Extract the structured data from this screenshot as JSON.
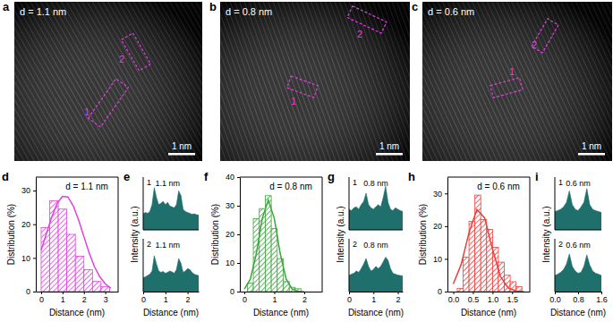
{
  "images": [
    {
      "panel_label": "a",
      "label": "d = 1.1 nm",
      "scale_bar": "1 nm",
      "regions": [
        "1",
        "2"
      ]
    },
    {
      "panel_label": "b",
      "label": "d = 0.8 nm",
      "scale_bar": "1 nm",
      "regions": [
        "1",
        "2"
      ]
    },
    {
      "panel_label": "c",
      "label": "d = 0.6 nm",
      "scale_bar": "1 nm",
      "regions": [
        "1",
        "2"
      ]
    }
  ],
  "chart_data": [
    {
      "type": "histogram",
      "panel_label": "d",
      "annotation": "d = 1.1 nm",
      "xlabel": "Distance (nm)",
      "ylabel": "Distribution (%)",
      "bins": [
        0,
        0.4,
        0.8,
        1.2,
        1.6,
        2.0,
        2.4,
        2.8,
        3.2
      ],
      "values": [
        19,
        27,
        24.5,
        17,
        10.5,
        6.5,
        3,
        1.5
      ],
      "fit_x": [
        0,
        0.25,
        0.5,
        0.75,
        1,
        1.25,
        1.5,
        1.75,
        2,
        2.25,
        2.5,
        2.75,
        3,
        3.25
      ],
      "fit_values": [
        12.3,
        17.3,
        22.2,
        26.2,
        28.3,
        28.1,
        25.5,
        21.3,
        16.3,
        11.4,
        7.3,
        4.3,
        2.3,
        1.0
      ],
      "color": "#e040e0",
      "xlim": [
        -0.25,
        3.6
      ],
      "xticks": [
        0,
        1,
        2,
        3
      ],
      "ylim": [
        0,
        34
      ],
      "yticks": [
        0,
        10,
        20,
        30
      ]
    },
    {
      "type": "area",
      "panel_label": "e",
      "xlabel": "Distance (nm)",
      "ylabel": "Intensity (a.u.)",
      "xlim": [
        0,
        2.5
      ],
      "xticks": [
        0,
        1,
        2
      ],
      "ylim": [
        0,
        1.15
      ],
      "tick_labels": "x",
      "color": "#1f6f6c",
      "subplots": [
        {
          "label": "1",
          "annotation": {
            "text": "1.1 nm",
            "x": 1.1,
            "y": 0.95
          },
          "x": [
            0,
            0.1,
            0.2,
            0.3,
            0.4,
            0.5,
            0.6,
            0.7,
            0.8,
            0.9,
            1,
            1.1,
            1.2,
            1.3,
            1.4,
            1.5,
            1.6,
            1.7,
            1.8,
            1.9,
            2,
            2.1,
            2.2,
            2.3,
            2.4,
            2.5
          ],
          "values": [
            0.35,
            0.38,
            0.36,
            0.4,
            0.55,
            0.92,
            0.7,
            0.55,
            0.58,
            0.62,
            0.55,
            0.6,
            0.52,
            0.5,
            0.48,
            0.55,
            0.85,
            0.75,
            0.45,
            0.4,
            0.38,
            0.36,
            0.34,
            0.35,
            0.33,
            0.32
          ]
        },
        {
          "label": "2",
          "annotation": {
            "text": "1.1 nm",
            "x": 1.1,
            "y": 0.95
          },
          "x": [
            0,
            0.1,
            0.2,
            0.3,
            0.4,
            0.5,
            0.6,
            0.7,
            0.8,
            0.9,
            1,
            1.1,
            1.2,
            1.3,
            1.4,
            1.5,
            1.6,
            1.7,
            1.8,
            1.9,
            2,
            2.1,
            2.2,
            2.3,
            2.4,
            2.5
          ],
          "values": [
            0.3,
            0.32,
            0.35,
            0.38,
            0.45,
            0.78,
            0.6,
            0.45,
            0.42,
            0.44,
            0.4,
            0.42,
            0.45,
            0.43,
            0.4,
            0.48,
            0.72,
            0.62,
            0.42,
            0.45,
            0.5,
            0.48,
            0.42,
            0.38,
            0.36,
            0.35
          ]
        }
      ]
    },
    {
      "type": "histogram",
      "panel_label": "f",
      "annotation": "d = 0.8 nm",
      "xlabel": "Distance (nm)",
      "ylabel": "Distribution (%)",
      "bins": [
        0.1,
        0.3,
        0.5,
        0.7,
        0.9,
        1.1,
        1.3,
        1.5,
        1.7,
        1.9
      ],
      "values": [
        3,
        25.5,
        29,
        33.5,
        22,
        11.5,
        3.5,
        1.5,
        1
      ],
      "fit_x": [
        0,
        0.2,
        0.4,
        0.6,
        0.8,
        1,
        1.2,
        1.4,
        1.6,
        1.8,
        2
      ],
      "fit_values": [
        0.9,
        4.3,
        13.2,
        25.6,
        32,
        25.6,
        13.2,
        4.3,
        0.9,
        0.1,
        0
      ],
      "color": "#3aa83a",
      "xlim": [
        -0.15,
        2.6
      ],
      "xticks": [
        0,
        1,
        2
      ],
      "ylim": [
        0,
        40
      ],
      "yticks": [
        0,
        10,
        20,
        30,
        40
      ]
    },
    {
      "type": "area",
      "panel_label": "g",
      "xlabel": "Distance (nm)",
      "ylabel": "Intensity (a.u.)",
      "xlim": [
        0,
        2.2
      ],
      "xticks": [
        0,
        1,
        2
      ],
      "ylim": [
        0,
        1.15
      ],
      "tick_labels": "x",
      "color": "#1f6f6c",
      "subplots": [
        {
          "label": "1",
          "annotation": {
            "text": "0.8 nm",
            "x": 1.1,
            "y": 0.95
          },
          "x": [
            0,
            0.1,
            0.2,
            0.3,
            0.4,
            0.5,
            0.6,
            0.7,
            0.8,
            0.9,
            1,
            1.1,
            1.2,
            1.3,
            1.4,
            1.5,
            1.6,
            1.7,
            1.8,
            1.9,
            2,
            2.1,
            2.2
          ],
          "values": [
            0.45,
            0.42,
            0.48,
            0.5,
            0.45,
            0.55,
            0.62,
            0.8,
            0.55,
            0.48,
            0.45,
            0.5,
            0.55,
            0.5,
            0.7,
            0.95,
            0.6,
            0.45,
            0.42,
            0.48,
            0.45,
            0.42,
            0.4
          ]
        },
        {
          "label": "2",
          "annotation": {
            "text": "0.8 nm",
            "x": 1.1,
            "y": 0.95
          },
          "x": [
            0,
            0.1,
            0.2,
            0.3,
            0.4,
            0.5,
            0.6,
            0.7,
            0.8,
            0.9,
            1,
            1.1,
            1.2,
            1.3,
            1.4,
            1.5,
            1.6,
            1.7,
            1.8,
            1.9,
            2,
            2.1,
            2.2
          ],
          "values": [
            0.35,
            0.38,
            0.4,
            0.45,
            0.42,
            0.5,
            0.6,
            0.72,
            0.55,
            0.45,
            0.48,
            0.55,
            0.5,
            0.55,
            0.65,
            0.75,
            0.68,
            0.5,
            0.4,
            0.38,
            0.36,
            0.35,
            0.34
          ]
        }
      ]
    },
    {
      "type": "histogram",
      "panel_label": "h",
      "annotation": "d = 0.6 nm",
      "xlabel": "Distance (nm)",
      "ylabel": "Distribution (%)",
      "bins": [
        0.1,
        0.25,
        0.4,
        0.55,
        0.7,
        0.85,
        1.0,
        1.15,
        1.3,
        1.45,
        1.6,
        1.75
      ],
      "values": [
        1,
        10.5,
        21.5,
        29.5,
        22,
        19,
        13.5,
        9,
        5,
        3,
        1.5
      ],
      "fit_x": [
        0,
        0.2,
        0.4,
        0.6,
        0.8,
        1,
        1.2,
        1.4,
        1.6,
        1.8
      ],
      "fit_values": [
        2.4,
        8.3,
        18,
        25.1,
        22.5,
        12.9,
        4.7,
        1.1,
        0.2,
        0
      ],
      "color": "#e8403e",
      "xlim": [
        -0.15,
        1.95
      ],
      "xticks": [
        {
          "value": 0,
          "label": "0.0"
        },
        {
          "value": 0.5,
          "label": "0.5"
        },
        {
          "value": 1,
          "label": "1.0"
        },
        {
          "value": 1.5,
          "label": "1.5"
        }
      ],
      "ylim": [
        0,
        35
      ],
      "yticks": [
        0,
        10,
        20,
        30
      ]
    },
    {
      "type": "area",
      "panel_label": "i",
      "xlabel": "Distance (nm)",
      "ylabel": "Intensity (a.u.)",
      "xlim": [
        0,
        1.6
      ],
      "xticks": [
        {
          "value": 0,
          "label": "0.0"
        },
        {
          "value": 0.8,
          "label": "0.8"
        },
        {
          "value": 1.6,
          "label": "1.6"
        }
      ],
      "ylim": [
        0,
        1.15
      ],
      "tick_labels": "x",
      "color": "#1f6f6c",
      "subplots": [
        {
          "label": "1",
          "annotation": {
            "text": "0.6 nm",
            "x": 0.8,
            "y": 0.95
          },
          "x": [
            0,
            0.1,
            0.2,
            0.3,
            0.4,
            0.5,
            0.6,
            0.7,
            0.8,
            0.9,
            1,
            1.1,
            1.2,
            1.3,
            1.4,
            1.5,
            1.6
          ],
          "values": [
            0.4,
            0.42,
            0.45,
            0.5,
            0.6,
            0.85,
            0.55,
            0.45,
            0.42,
            0.5,
            0.6,
            0.9,
            0.55,
            0.45,
            0.42,
            0.4,
            0.38
          ]
        },
        {
          "label": "2",
          "annotation": {
            "text": "0.6 nm",
            "x": 0.8,
            "y": 0.95
          },
          "x": [
            0,
            0.1,
            0.2,
            0.3,
            0.4,
            0.5,
            0.6,
            0.7,
            0.8,
            0.9,
            1,
            1.1,
            1.2,
            1.3,
            1.4,
            1.5,
            1.6
          ],
          "values": [
            0.35,
            0.38,
            0.42,
            0.48,
            0.6,
            0.82,
            0.55,
            0.45,
            0.4,
            0.42,
            0.55,
            0.8,
            0.58,
            0.45,
            0.4,
            0.38,
            0.35
          ]
        }
      ]
    }
  ]
}
